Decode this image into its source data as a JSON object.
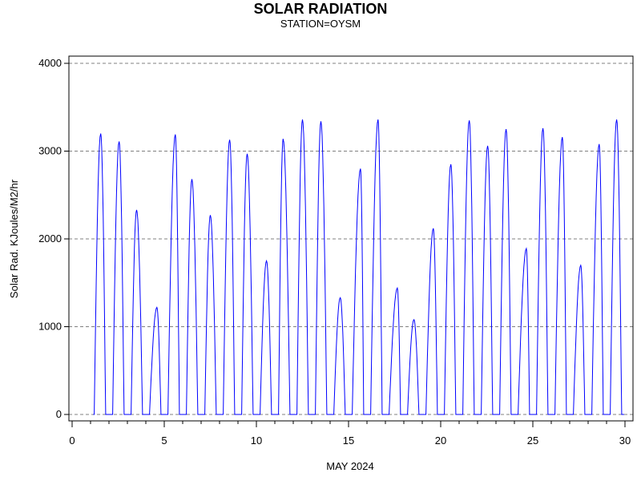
{
  "chart_data": {
    "type": "line",
    "title": "SOLAR RADIATION",
    "subtitle": "STATION=OYSM",
    "xlabel": "MAY 2024",
    "ylabel": "Solar Rad. KJoules/M2/hr",
    "xlim": [
      0,
      30
    ],
    "ylim": [
      0,
      4000
    ],
    "x_ticks": [
      0,
      5,
      10,
      15,
      20,
      25,
      30
    ],
    "y_ticks": [
      0,
      1000,
      2000,
      3000,
      4000
    ],
    "grid": "horizontal-dashed",
    "legend": "none",
    "colors": {
      "series": "#0000ff",
      "grid": "#808080",
      "axis": "#000000"
    },
    "series": [
      {
        "daily_peaks": [
          {
            "day": 1,
            "x": 1.55,
            "y": 3200
          },
          {
            "day": 2,
            "x": 2.55,
            "y": 3110
          },
          {
            "day": 3,
            "x": 3.5,
            "y": 2330
          },
          {
            "day": 4,
            "x": 4.6,
            "y": 1220
          },
          {
            "day": 5,
            "x": 5.6,
            "y": 3190
          },
          {
            "day": 6,
            "x": 6.5,
            "y": 2680
          },
          {
            "day": 7,
            "x": 7.5,
            "y": 2270
          },
          {
            "day": 8,
            "x": 8.55,
            "y": 3130
          },
          {
            "day": 9,
            "x": 9.5,
            "y": 2970
          },
          {
            "day": 10,
            "x": 10.55,
            "y": 1750
          },
          {
            "day": 11,
            "x": 11.45,
            "y": 3140
          },
          {
            "day": 12,
            "x": 12.5,
            "y": 3360
          },
          {
            "day": 13,
            "x": 13.5,
            "y": 3340
          },
          {
            "day": 14,
            "x": 14.55,
            "y": 1330
          },
          {
            "day": 15,
            "x": 15.65,
            "y": 2800
          },
          {
            "day": 16,
            "x": 16.6,
            "y": 3360
          },
          {
            "day": 17,
            "x": 17.65,
            "y": 1440
          },
          {
            "day": 18,
            "x": 18.55,
            "y": 1080
          },
          {
            "day": 19,
            "x": 19.6,
            "y": 2120
          },
          {
            "day": 20,
            "x": 20.55,
            "y": 2850
          },
          {
            "day": 21,
            "x": 21.55,
            "y": 3350
          },
          {
            "day": 22,
            "x": 22.55,
            "y": 3060
          },
          {
            "day": 23,
            "x": 23.55,
            "y": 3250
          },
          {
            "day": 24,
            "x": 24.65,
            "y": 1890
          },
          {
            "day": 25,
            "x": 25.55,
            "y": 3260
          },
          {
            "day": 26,
            "x": 26.6,
            "y": 3160
          },
          {
            "day": 27,
            "x": 27.6,
            "y": 1700
          },
          {
            "day": 28,
            "x": 28.6,
            "y": 3080
          },
          {
            "day": 29,
            "x": 29.55,
            "y": 3360
          }
        ],
        "night_value": 0,
        "x_start": 1.15,
        "x_end": 29.95
      }
    ]
  }
}
